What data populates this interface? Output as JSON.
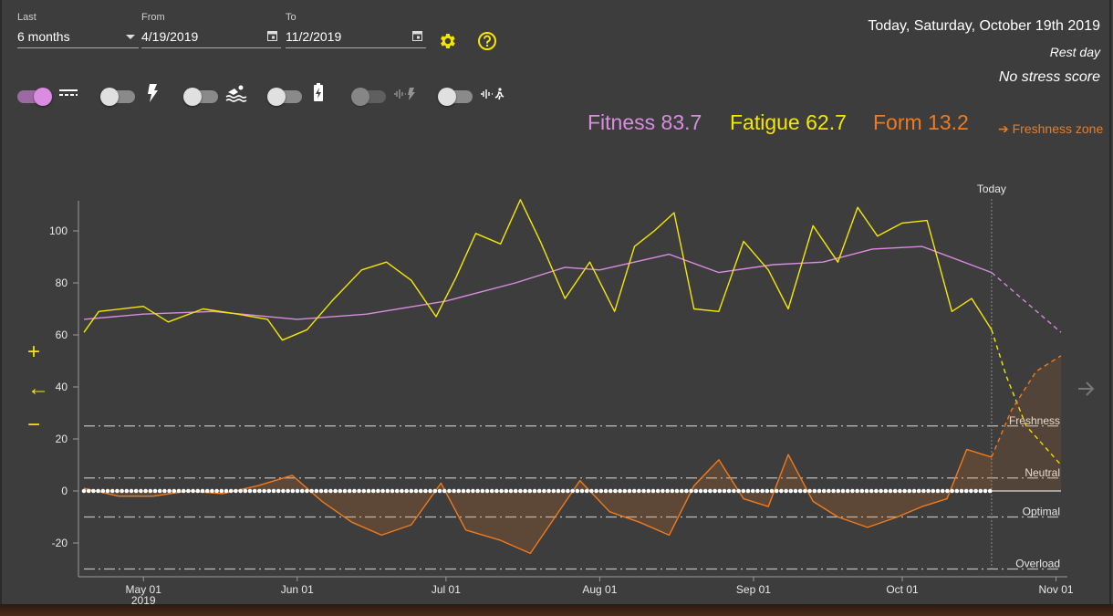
{
  "controls": {
    "last": {
      "label": "Last",
      "value": "6 months"
    },
    "from": {
      "label": "From",
      "value": "4/19/2019"
    },
    "to": {
      "label": "To",
      "value": "11/2/2019"
    }
  },
  "header": {
    "today": "Today, Saturday, October 19th 2019",
    "day_type": "Rest day",
    "stress": "No stress score"
  },
  "metrics": {
    "fitness": {
      "label": "Fitness 83.7",
      "color": "#d98ce0"
    },
    "fatigue": {
      "label": "Fatigue 62.7",
      "color": "#f6e700"
    },
    "form": {
      "label": "Form 13.2",
      "color": "#f07a1c"
    },
    "zone_link": "➔ Freshness zone"
  },
  "toggles": [
    {
      "name": "average",
      "on": true,
      "icon": "average-lines-icon"
    },
    {
      "name": "power",
      "on": false,
      "icon": "lightning-icon"
    },
    {
      "name": "swim",
      "on": false,
      "icon": "swimmer-icon"
    },
    {
      "name": "battery",
      "on": false,
      "icon": "battery-icon"
    },
    {
      "name": "heart-power",
      "on": false,
      "dim": true,
      "icon": "heartrate-lightning-icon"
    },
    {
      "name": "heart-run",
      "on": false,
      "icon": "heartrate-runner-icon"
    }
  ],
  "side_controls": {
    "zoom_in": "+",
    "back": "←",
    "zoom_out": "−"
  },
  "chart_data": {
    "type": "line",
    "title": "",
    "xlabel": "",
    "ylabel": "",
    "x_range": [
      "2019-04-19",
      "2019-11-02"
    ],
    "ylim": [
      -30,
      112
    ],
    "y_ticks": [
      -20,
      0,
      20,
      40,
      60,
      80,
      100
    ],
    "x_tick_labels": [
      {
        "date": "2019-05-01",
        "label": "May 01",
        "sub": "2019"
      },
      {
        "date": "2019-06-01",
        "label": "Jun 01"
      },
      {
        "date": "2019-07-01",
        "label": "Jul 01"
      },
      {
        "date": "2019-08-01",
        "label": "Aug 01"
      },
      {
        "date": "2019-09-01",
        "label": "Sep 01"
      },
      {
        "date": "2019-10-01",
        "label": "Oct 01"
      },
      {
        "date": "2019-11-01",
        "label": "Nov 01"
      }
    ],
    "today_marker": {
      "date": "2019-10-19",
      "label": "Today"
    },
    "zones": [
      {
        "label": "Freshness",
        "value": 25
      },
      {
        "label": "Neutral",
        "value": 5
      },
      {
        "label": "Optimal",
        "value": -10
      },
      {
        "label": "Overload",
        "value": -30
      }
    ],
    "grid": false,
    "series": [
      {
        "name": "Fitness",
        "color": "#d98ce0",
        "points": [
          [
            "2019-04-19",
            66
          ],
          [
            "2019-05-01",
            68
          ],
          [
            "2019-05-15",
            69
          ],
          [
            "2019-06-01",
            66
          ],
          [
            "2019-06-15",
            68
          ],
          [
            "2019-07-01",
            73
          ],
          [
            "2019-07-15",
            80
          ],
          [
            "2019-07-25",
            86
          ],
          [
            "2019-08-01",
            85
          ],
          [
            "2019-08-15",
            91
          ],
          [
            "2019-08-25",
            84
          ],
          [
            "2019-09-05",
            87
          ],
          [
            "2019-09-15",
            88
          ],
          [
            "2019-09-25",
            93
          ],
          [
            "2019-10-05",
            94
          ],
          [
            "2019-10-19",
            84
          ]
        ],
        "forecast": [
          [
            "2019-10-19",
            84
          ],
          [
            "2019-11-02",
            61
          ]
        ]
      },
      {
        "name": "Fatigue",
        "color": "#f6e700",
        "points": [
          [
            "2019-04-19",
            61
          ],
          [
            "2019-04-22",
            69
          ],
          [
            "2019-05-01",
            71
          ],
          [
            "2019-05-06",
            65
          ],
          [
            "2019-05-13",
            70
          ],
          [
            "2019-05-20",
            68
          ],
          [
            "2019-05-26",
            66
          ],
          [
            "2019-05-29",
            58
          ],
          [
            "2019-06-03",
            62
          ],
          [
            "2019-06-08",
            73
          ],
          [
            "2019-06-14",
            85
          ],
          [
            "2019-06-19",
            88
          ],
          [
            "2019-06-24",
            81
          ],
          [
            "2019-06-29",
            67
          ],
          [
            "2019-07-03",
            82
          ],
          [
            "2019-07-07",
            99
          ],
          [
            "2019-07-12",
            95
          ],
          [
            "2019-07-16",
            112
          ],
          [
            "2019-07-20",
            96
          ],
          [
            "2019-07-25",
            74
          ],
          [
            "2019-07-30",
            88
          ],
          [
            "2019-08-04",
            69
          ],
          [
            "2019-08-08",
            94
          ],
          [
            "2019-08-12",
            100
          ],
          [
            "2019-08-16",
            107
          ],
          [
            "2019-08-20",
            70
          ],
          [
            "2019-08-25",
            69
          ],
          [
            "2019-08-30",
            96
          ],
          [
            "2019-09-04",
            85
          ],
          [
            "2019-09-08",
            70
          ],
          [
            "2019-09-13",
            102
          ],
          [
            "2019-09-18",
            88
          ],
          [
            "2019-09-22",
            109
          ],
          [
            "2019-09-26",
            98
          ],
          [
            "2019-10-01",
            103
          ],
          [
            "2019-10-06",
            104
          ],
          [
            "2019-10-11",
            69
          ],
          [
            "2019-10-15",
            74
          ],
          [
            "2019-10-19",
            62
          ]
        ],
        "forecast": [
          [
            "2019-10-19",
            62
          ],
          [
            "2019-10-22",
            44
          ],
          [
            "2019-10-26",
            25
          ],
          [
            "2019-11-02",
            10
          ]
        ]
      },
      {
        "name": "Form",
        "color": "#f07a1c",
        "points": [
          [
            "2019-04-19",
            1
          ],
          [
            "2019-04-26",
            -2
          ],
          [
            "2019-05-03",
            -2
          ],
          [
            "2019-05-10",
            0
          ],
          [
            "2019-05-17",
            -1
          ],
          [
            "2019-05-24",
            2
          ],
          [
            "2019-05-31",
            6
          ],
          [
            "2019-06-06",
            -4
          ],
          [
            "2019-06-12",
            -12
          ],
          [
            "2019-06-18",
            -17
          ],
          [
            "2019-06-24",
            -13
          ],
          [
            "2019-06-30",
            3
          ],
          [
            "2019-07-05",
            -15
          ],
          [
            "2019-07-12",
            -19
          ],
          [
            "2019-07-18",
            -24
          ],
          [
            "2019-07-23",
            -10
          ],
          [
            "2019-07-28",
            4
          ],
          [
            "2019-08-03",
            -8
          ],
          [
            "2019-08-09",
            -12
          ],
          [
            "2019-08-15",
            -17
          ],
          [
            "2019-08-20",
            2
          ],
          [
            "2019-08-25",
            12
          ],
          [
            "2019-08-30",
            -3
          ],
          [
            "2019-09-04",
            -6
          ],
          [
            "2019-09-08",
            14
          ],
          [
            "2019-09-13",
            -4
          ],
          [
            "2019-09-18",
            -10
          ],
          [
            "2019-09-24",
            -14
          ],
          [
            "2019-09-30",
            -10
          ],
          [
            "2019-10-05",
            -6
          ],
          [
            "2019-10-10",
            -3
          ],
          [
            "2019-10-14",
            16
          ],
          [
            "2019-10-19",
            13
          ]
        ],
        "forecast": [
          [
            "2019-10-19",
            13
          ],
          [
            "2019-10-23",
            31
          ],
          [
            "2019-10-28",
            46
          ],
          [
            "2019-11-02",
            52
          ]
        ]
      }
    ],
    "rest_day_markers": {
      "value": 0,
      "from": "2019-04-19",
      "to": "2019-10-19"
    }
  }
}
